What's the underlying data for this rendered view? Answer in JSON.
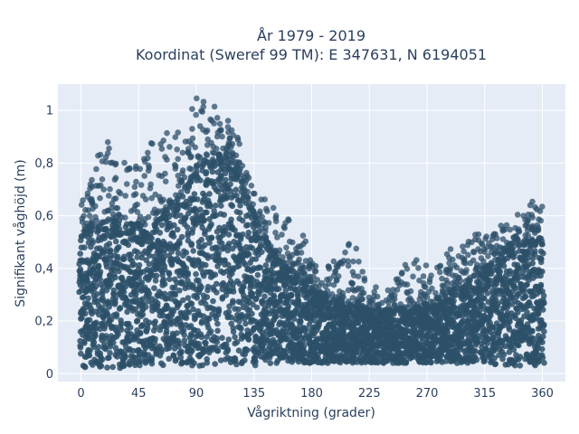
{
  "chart_data": {
    "type": "scatter",
    "title_line1": "År 1979 - 2019",
    "title_line2": "Koordinat (Sweref 99 TM): E 347631, N 6194051",
    "xlabel": "Vågriktning (grader)",
    "ylabel": "Signifikant våghöjd (m)",
    "xlim": [
      -18,
      378
    ],
    "ylim": [
      -0.03,
      1.1
    ],
    "x_ticks": [
      0,
      45,
      90,
      135,
      180,
      225,
      270,
      315,
      360
    ],
    "x_tick_labels": [
      "0",
      "45",
      "90",
      "135",
      "180",
      "225",
      "270",
      "315",
      "360"
    ],
    "y_ticks": [
      0,
      0.2,
      0.4,
      0.6,
      0.8,
      1
    ],
    "y_tick_labels": [
      "0",
      "0,2",
      "0,4",
      "0,6",
      "0,8",
      "1"
    ],
    "grid": true,
    "marker_color": "#2d5069",
    "background_color": "#e5ecf6",
    "envelope": {
      "description_x": [
        0,
        15,
        30,
        45,
        60,
        75,
        90,
        105,
        120,
        135,
        150,
        165,
        180,
        195,
        210,
        225,
        240,
        255,
        270,
        285,
        300,
        315,
        330,
        345,
        360
      ],
      "dense_upper": [
        0.52,
        0.56,
        0.6,
        0.55,
        0.58,
        0.66,
        0.76,
        0.84,
        0.8,
        0.6,
        0.45,
        0.38,
        0.32,
        0.28,
        0.26,
        0.24,
        0.24,
        0.25,
        0.26,
        0.3,
        0.35,
        0.4,
        0.46,
        0.5,
        0.5
      ],
      "outlier_max": [
        0.64,
        0.88,
        0.9,
        0.82,
        0.97,
        0.92,
        1.05,
        1.02,
        0.95,
        0.7,
        0.64,
        0.58,
        0.48,
        0.42,
        0.54,
        0.34,
        0.32,
        0.45,
        0.42,
        0.47,
        0.5,
        0.56,
        0.57,
        0.62,
        0.69
      ],
      "lower": [
        0.02,
        0.02,
        0.02,
        0.03,
        0.03,
        0.03,
        0.03,
        0.03,
        0.03,
        0.03,
        0.04,
        0.04,
        0.04,
        0.04,
        0.04,
        0.04,
        0.04,
        0.04,
        0.04,
        0.04,
        0.04,
        0.04,
        0.03,
        0.03,
        0.03
      ]
    }
  },
  "colors": {
    "axis_text": "#2a3f5f",
    "grid": "#ffffff",
    "plot_bg": "#e5ecf6",
    "marker": "#2d5069"
  }
}
